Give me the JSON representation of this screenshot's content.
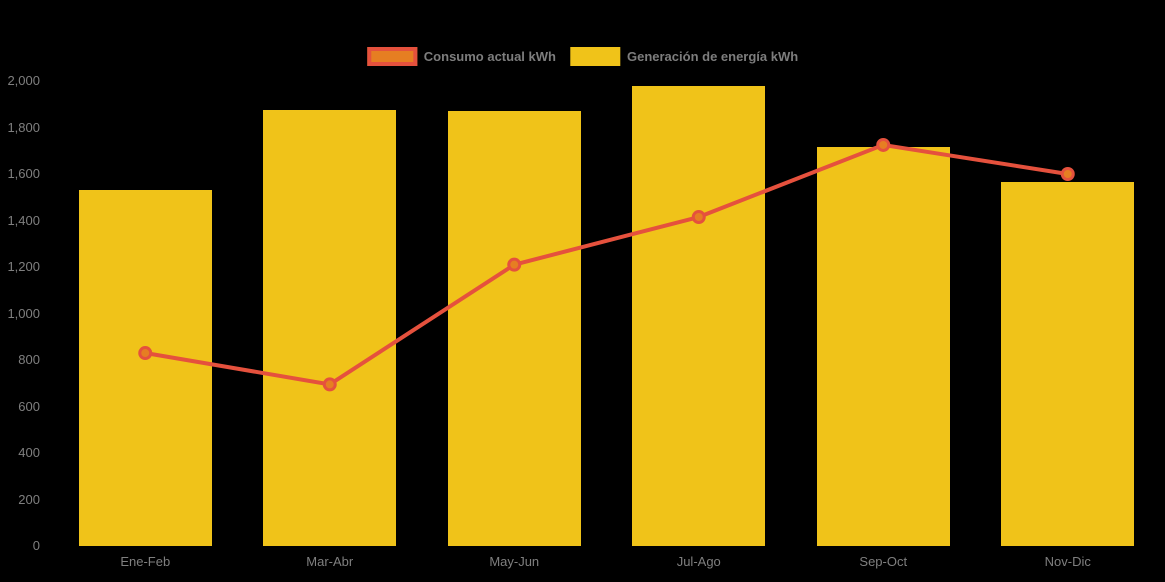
{
  "chart": {
    "background_color": "#000000",
    "axis_label_color": "#7f7f7f",
    "legend_label_color": "#7d7d7d"
  },
  "chart_data": {
    "type": "bar+line",
    "title": "",
    "xlabel": "",
    "ylabel": "",
    "categories": [
      "Ene-Feb",
      "Mar-Abr",
      "May-Jun",
      "Jul-Ago",
      "Sep-Oct",
      "Nov-Dic"
    ],
    "series": [
      {
        "name": "Generación de energía kWh",
        "type": "bar",
        "color": "#F0C319",
        "values": [
          1530,
          1875,
          1870,
          1980,
          1715,
          1565
        ]
      },
      {
        "name": "Consumo actual kWh",
        "type": "line",
        "color": "#E5513D",
        "marker_fill": "#E67E22",
        "values": [
          830,
          695,
          1210,
          1415,
          1725,
          1600
        ]
      }
    ],
    "ylim": [
      0,
      2000
    ],
    "ytick_step": 200,
    "ytick_labels": [
      "0",
      "200",
      "400",
      "600",
      "800",
      "1,000",
      "1,200",
      "1,400",
      "1,600",
      "1,800",
      "2,000"
    ],
    "grid": false,
    "legend_position": "top-center"
  }
}
